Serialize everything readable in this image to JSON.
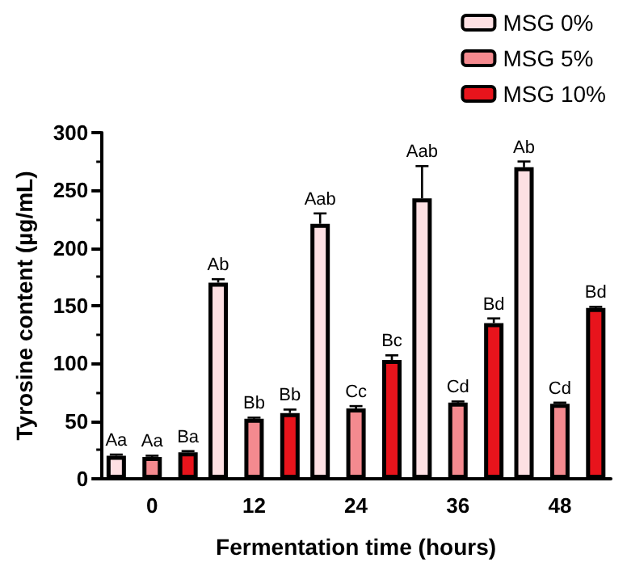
{
  "chart_data": {
    "type": "bar",
    "xlabel": "Fermentation time (hours)",
    "ylabel": "Tyrosine content (µg/mL)",
    "categories": [
      "0",
      "12",
      "24",
      "36",
      "48"
    ],
    "series": [
      {
        "name": "MSG 0%",
        "color": "#fde0e3",
        "values": [
          20,
          170,
          221,
          243,
          270
        ],
        "errors": [
          1,
          3,
          9,
          28,
          5
        ],
        "value_labels": [
          "Aa",
          "Ab",
          "Aab",
          "Aab",
          "Ab"
        ]
      },
      {
        "name": "MSG 5%",
        "color": "#f48a8f",
        "values": [
          19,
          52,
          61,
          66,
          65
        ],
        "errors": [
          1,
          1,
          2,
          1,
          1
        ],
        "value_labels": [
          "Aa",
          "Bb",
          "Cc",
          "Cd",
          "Cd"
        ]
      },
      {
        "name": "MSG 10%",
        "color": "#e8141c",
        "values": [
          23,
          57,
          103,
          135,
          148
        ],
        "errors": [
          1,
          3,
          4,
          4,
          1
        ],
        "value_labels": [
          "Ba",
          "Bb",
          "Bc",
          "Bd",
          "Bd"
        ]
      }
    ],
    "ylim": [
      0,
      300
    ],
    "yticks": [
      0,
      50,
      100,
      150,
      200,
      250,
      300
    ],
    "grid": false,
    "legend": "top right"
  }
}
